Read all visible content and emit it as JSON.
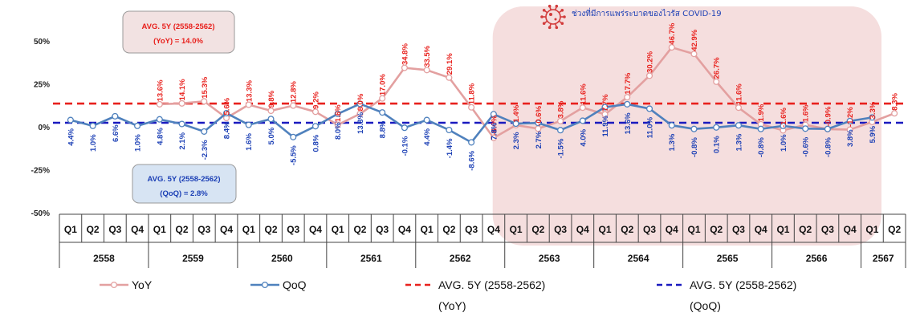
{
  "chart_data": {
    "type": "line",
    "ylim": [
      -50,
      50
    ],
    "y_ticks": [
      "50%",
      "25%",
      "0%",
      "-25%",
      "-50%"
    ],
    "quarters": [
      "Q1",
      "Q2",
      "Q3",
      "Q4",
      "Q1",
      "Q2",
      "Q3",
      "Q4",
      "Q1",
      "Q2",
      "Q3",
      "Q4",
      "Q1",
      "Q2",
      "Q3",
      "Q4",
      "Q1",
      "Q2",
      "Q3",
      "Q4",
      "Q1",
      "Q2",
      "Q3",
      "Q4",
      "Q1",
      "Q2",
      "Q3",
      "Q4",
      "Q1",
      "Q2",
      "Q3",
      "Q4",
      "Q1",
      "Q2",
      "Q3",
      "Q4",
      "Q1",
      "Q2"
    ],
    "years": [
      {
        "label": "2558",
        "span": 4
      },
      {
        "label": "2559",
        "span": 4
      },
      {
        "label": "2560",
        "span": 4
      },
      {
        "label": "2561",
        "span": 4
      },
      {
        "label": "2562",
        "span": 4
      },
      {
        "label": "2563",
        "span": 4
      },
      {
        "label": "2564",
        "span": 4
      },
      {
        "label": "2565",
        "span": 4
      },
      {
        "label": "2566",
        "span": 4
      },
      {
        "label": "2567",
        "span": 2
      }
    ],
    "series": [
      {
        "name": "YoY",
        "color": "#e3a0a0",
        "values": [
          null,
          null,
          null,
          null,
          13.6,
          14.1,
          15.3,
          5.6,
          13.3,
          9.8,
          12.8,
          9.2,
          1.6,
          8.0,
          17.0,
          34.8,
          33.5,
          29.1,
          11.8,
          -6.0,
          1.4,
          -0.6,
          3.8,
          11.6,
          7.7,
          17.7,
          30.2,
          46.7,
          42.9,
          26.7,
          11.6,
          1.9,
          -1.6,
          1.6,
          -0.9,
          -1.2,
          3.3,
          8.3
        ],
        "labels": [
          null,
          null,
          null,
          null,
          "13.6%",
          "14.1%",
          "15.3%",
          "5.6%",
          "13.3%",
          "9.8%",
          "12.8%",
          "9.2%",
          "1.6%",
          "8.0%",
          "17.0%",
          "34.8%",
          "33.5%",
          "29.1%",
          "11.8%",
          "-6.0%",
          "1.4%",
          "-0.6%",
          "3.8%",
          "11.6%",
          "7.7%",
          "17.7%",
          "30.2%",
          "46.7%",
          "42.9%",
          "26.7%",
          "11.6%",
          "1.9%",
          "-1.6%",
          "1.6%",
          "-0.9%",
          "-1.2%",
          "3.3%",
          "8.3%"
        ]
      },
      {
        "name": "QoQ",
        "color": "#4f81bd",
        "values": [
          4.4,
          1.0,
          6.6,
          1.0,
          4.8,
          2.1,
          -2.3,
          8.4,
          1.6,
          5.0,
          -5.5,
          0.8,
          8.0,
          13.8,
          8.8,
          -0.1,
          4.4,
          -1.4,
          -8.6,
          7.8,
          2.3,
          2.7,
          -1.5,
          4.0,
          11.9,
          13.6,
          11.0,
          1.3,
          -0.8,
          0.1,
          1.3,
          -0.8,
          1.0,
          -0.6,
          -0.8,
          3.8,
          5.9,
          null
        ],
        "labels": [
          "4.4%",
          "1.0%",
          "6.6%",
          "1.0%",
          "4.8%",
          "2.1%",
          "-2.3%",
          "8.4%",
          "1.6%",
          "5.0%",
          "-5.5%",
          "0.8%",
          "8.0%",
          "13.8%",
          "8.8%",
          "-0.1%",
          "4.4%",
          "-1.4%",
          "-8.6%",
          "7.8%",
          "2.3%",
          "2.7%",
          "-1.5%",
          "4.0%",
          "11.9%",
          "13.6%",
          "11.0%",
          "1.3%",
          "-0.8%",
          "0.1%",
          "1.3%",
          "-0.8%",
          "1.0%",
          "-0.6%",
          "-0.8%",
          "3.8%",
          "5.9%",
          null
        ]
      }
    ],
    "reference_lines": [
      {
        "name": "AVG. 5Y (2558-2562) (YoY)",
        "value": 14.0,
        "color": "#e8211d"
      },
      {
        "name": "AVG. 5Y (2558-2562) (QoQ)",
        "value": 2.8,
        "color": "#1a1abf"
      }
    ],
    "covid_period": {
      "from_index": 20,
      "to_index": 37,
      "label": "ช่วงที่มีการแพร่ระบาดของไวรัส COVID-19",
      "color": "#f5dede"
    },
    "annotations": {
      "yoy_box": {
        "line1": "AVG. 5Y (2558-2562)",
        "line2": "(YoY) = 14.0%"
      },
      "qoq_box": {
        "line1": "AVG. 5Y (2558-2562)",
        "line2": "(QoQ) = 2.8%"
      }
    },
    "legend": [
      {
        "key": "yoy",
        "label": "YoY"
      },
      {
        "key": "qoq",
        "label": "QoQ"
      },
      {
        "key": "avg_yoy",
        "label": "AVG. 5Y (2558-2562)",
        "sub": "(YoY)"
      },
      {
        "key": "avg_qoq",
        "label": "AVG. 5Y (2558-2562)",
        "sub": "(QoQ)"
      }
    ],
    "legend_placement": "bottom",
    "grid": false
  }
}
